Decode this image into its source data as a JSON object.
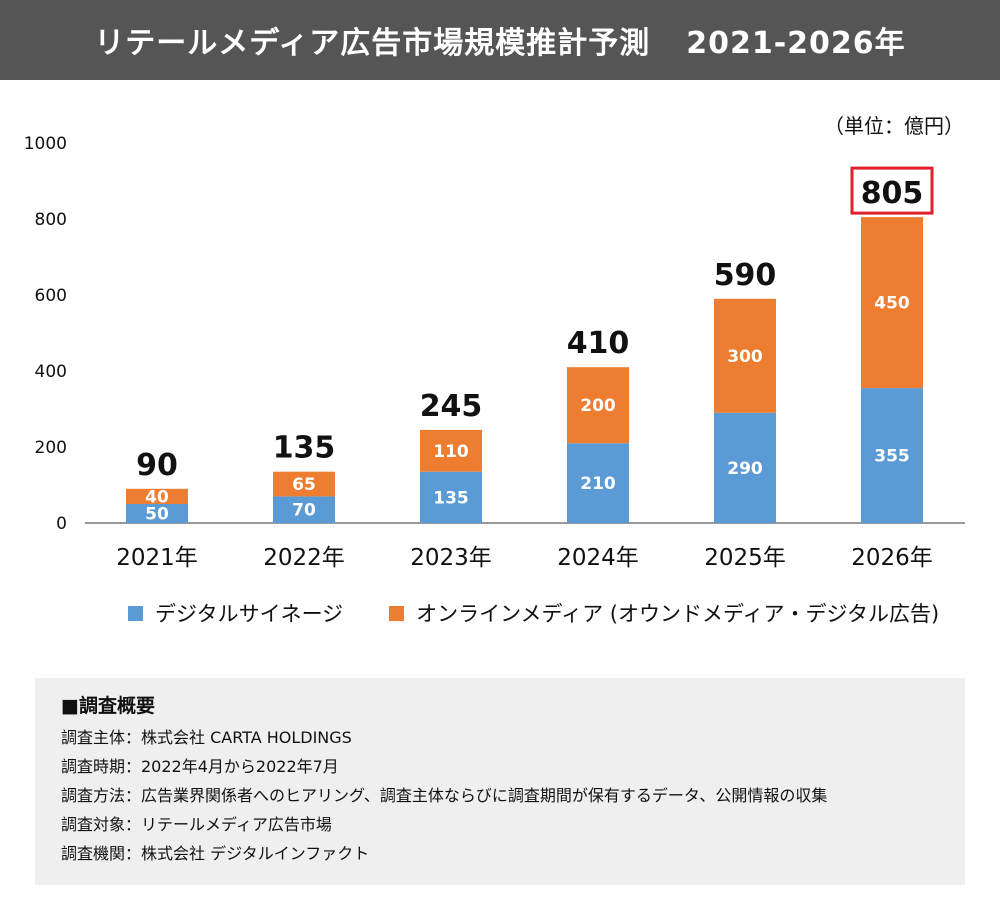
{
  "header": {
    "title": "リテールメディア広告市場規模推計予測",
    "years": "2021-2026年"
  },
  "unit": "（単位：億円）",
  "chart_data": {
    "type": "stacked-bar",
    "categories": [
      "2021年",
      "2022年",
      "2023年",
      "2024年",
      "2025年",
      "2026年"
    ],
    "series": [
      {
        "name": "デジタルサイネージ",
        "values": [
          50,
          70,
          135,
          210,
          290,
          355
        ],
        "color": "#5b9bd5"
      },
      {
        "name": "オンラインメディア (オウンドメディア・デジタル広告)",
        "values": [
          40,
          65,
          110,
          200,
          300,
          450
        ],
        "color": "#ed7d31"
      }
    ],
    "totals": [
      90,
      135,
      245,
      410,
      590,
      805
    ],
    "highlight_total_color": "#e0202a",
    "yticks": [
      "0",
      "200",
      "400",
      "600",
      "800",
      "1000"
    ],
    "ylim": [
      0,
      1000
    ],
    "grid": false,
    "legend": "bottom"
  },
  "survey": {
    "heading": "■調査概要",
    "lines": [
      "調査主体：株式会社 CARTA HOLDINGS",
      "調査時期：2022年4月から2022年7月",
      "調査方法：広告業界関係者へのヒアリング、調査主体ならびに調査期間が保有するデータ、公開情報の収集",
      "調査対象：リテールメディア広告市場",
      "調査機関：株式会社 デジタルインファクト"
    ]
  }
}
